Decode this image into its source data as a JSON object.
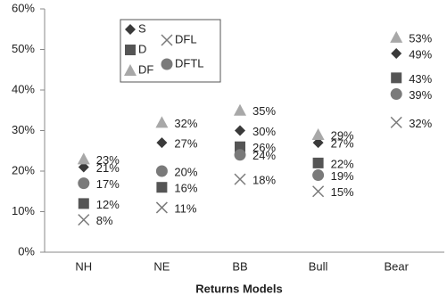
{
  "chart_data": {
    "type": "scatter",
    "x_label": "Returns Models",
    "categories": [
      "NH",
      "NE",
      "BB",
      "Bull",
      "Bear"
    ],
    "ylim": [
      0,
      60
    ],
    "yticks": [
      {
        "value": 0,
        "label": "0%"
      },
      {
        "value": 10,
        "label": "10%"
      },
      {
        "value": 20,
        "label": "20%"
      },
      {
        "value": 30,
        "label": "30%"
      },
      {
        "value": 40,
        "label": "40%"
      },
      {
        "value": 50,
        "label": "50%"
      },
      {
        "value": 60,
        "label": "60%"
      }
    ],
    "grid": false,
    "series": [
      {
        "name": "S",
        "marker": "diamond",
        "color": "#3a3a3a",
        "values": [
          21,
          27,
          30,
          27,
          49
        ],
        "value_labels": [
          "21%",
          "27%",
          "30%",
          "27%",
          "49%"
        ]
      },
      {
        "name": "D",
        "marker": "square",
        "color": "#555555",
        "values": [
          12,
          16,
          26,
          22,
          43
        ],
        "value_labels": [
          "12%",
          "16%",
          "26%",
          "22%",
          "43%"
        ]
      },
      {
        "name": "DF",
        "marker": "triangle",
        "color": "#a8a8a8",
        "values": [
          23,
          32,
          35,
          29,
          53
        ],
        "value_labels": [
          "23%",
          "32%",
          "35%",
          "29%",
          "53%"
        ]
      },
      {
        "name": "DFL",
        "marker": "x",
        "color": "#7a7a7a",
        "values": [
          8,
          11,
          18,
          15,
          32
        ],
        "value_labels": [
          "8%",
          "11%",
          "18%",
          "15%",
          "32%"
        ]
      },
      {
        "name": "DFTL",
        "marker": "circle",
        "color": "#7a7a7a",
        "values": [
          17,
          20,
          24,
          19,
          39
        ],
        "value_labels": [
          "17%",
          "20%",
          "24%",
          "19%",
          "39%"
        ]
      }
    ]
  }
}
